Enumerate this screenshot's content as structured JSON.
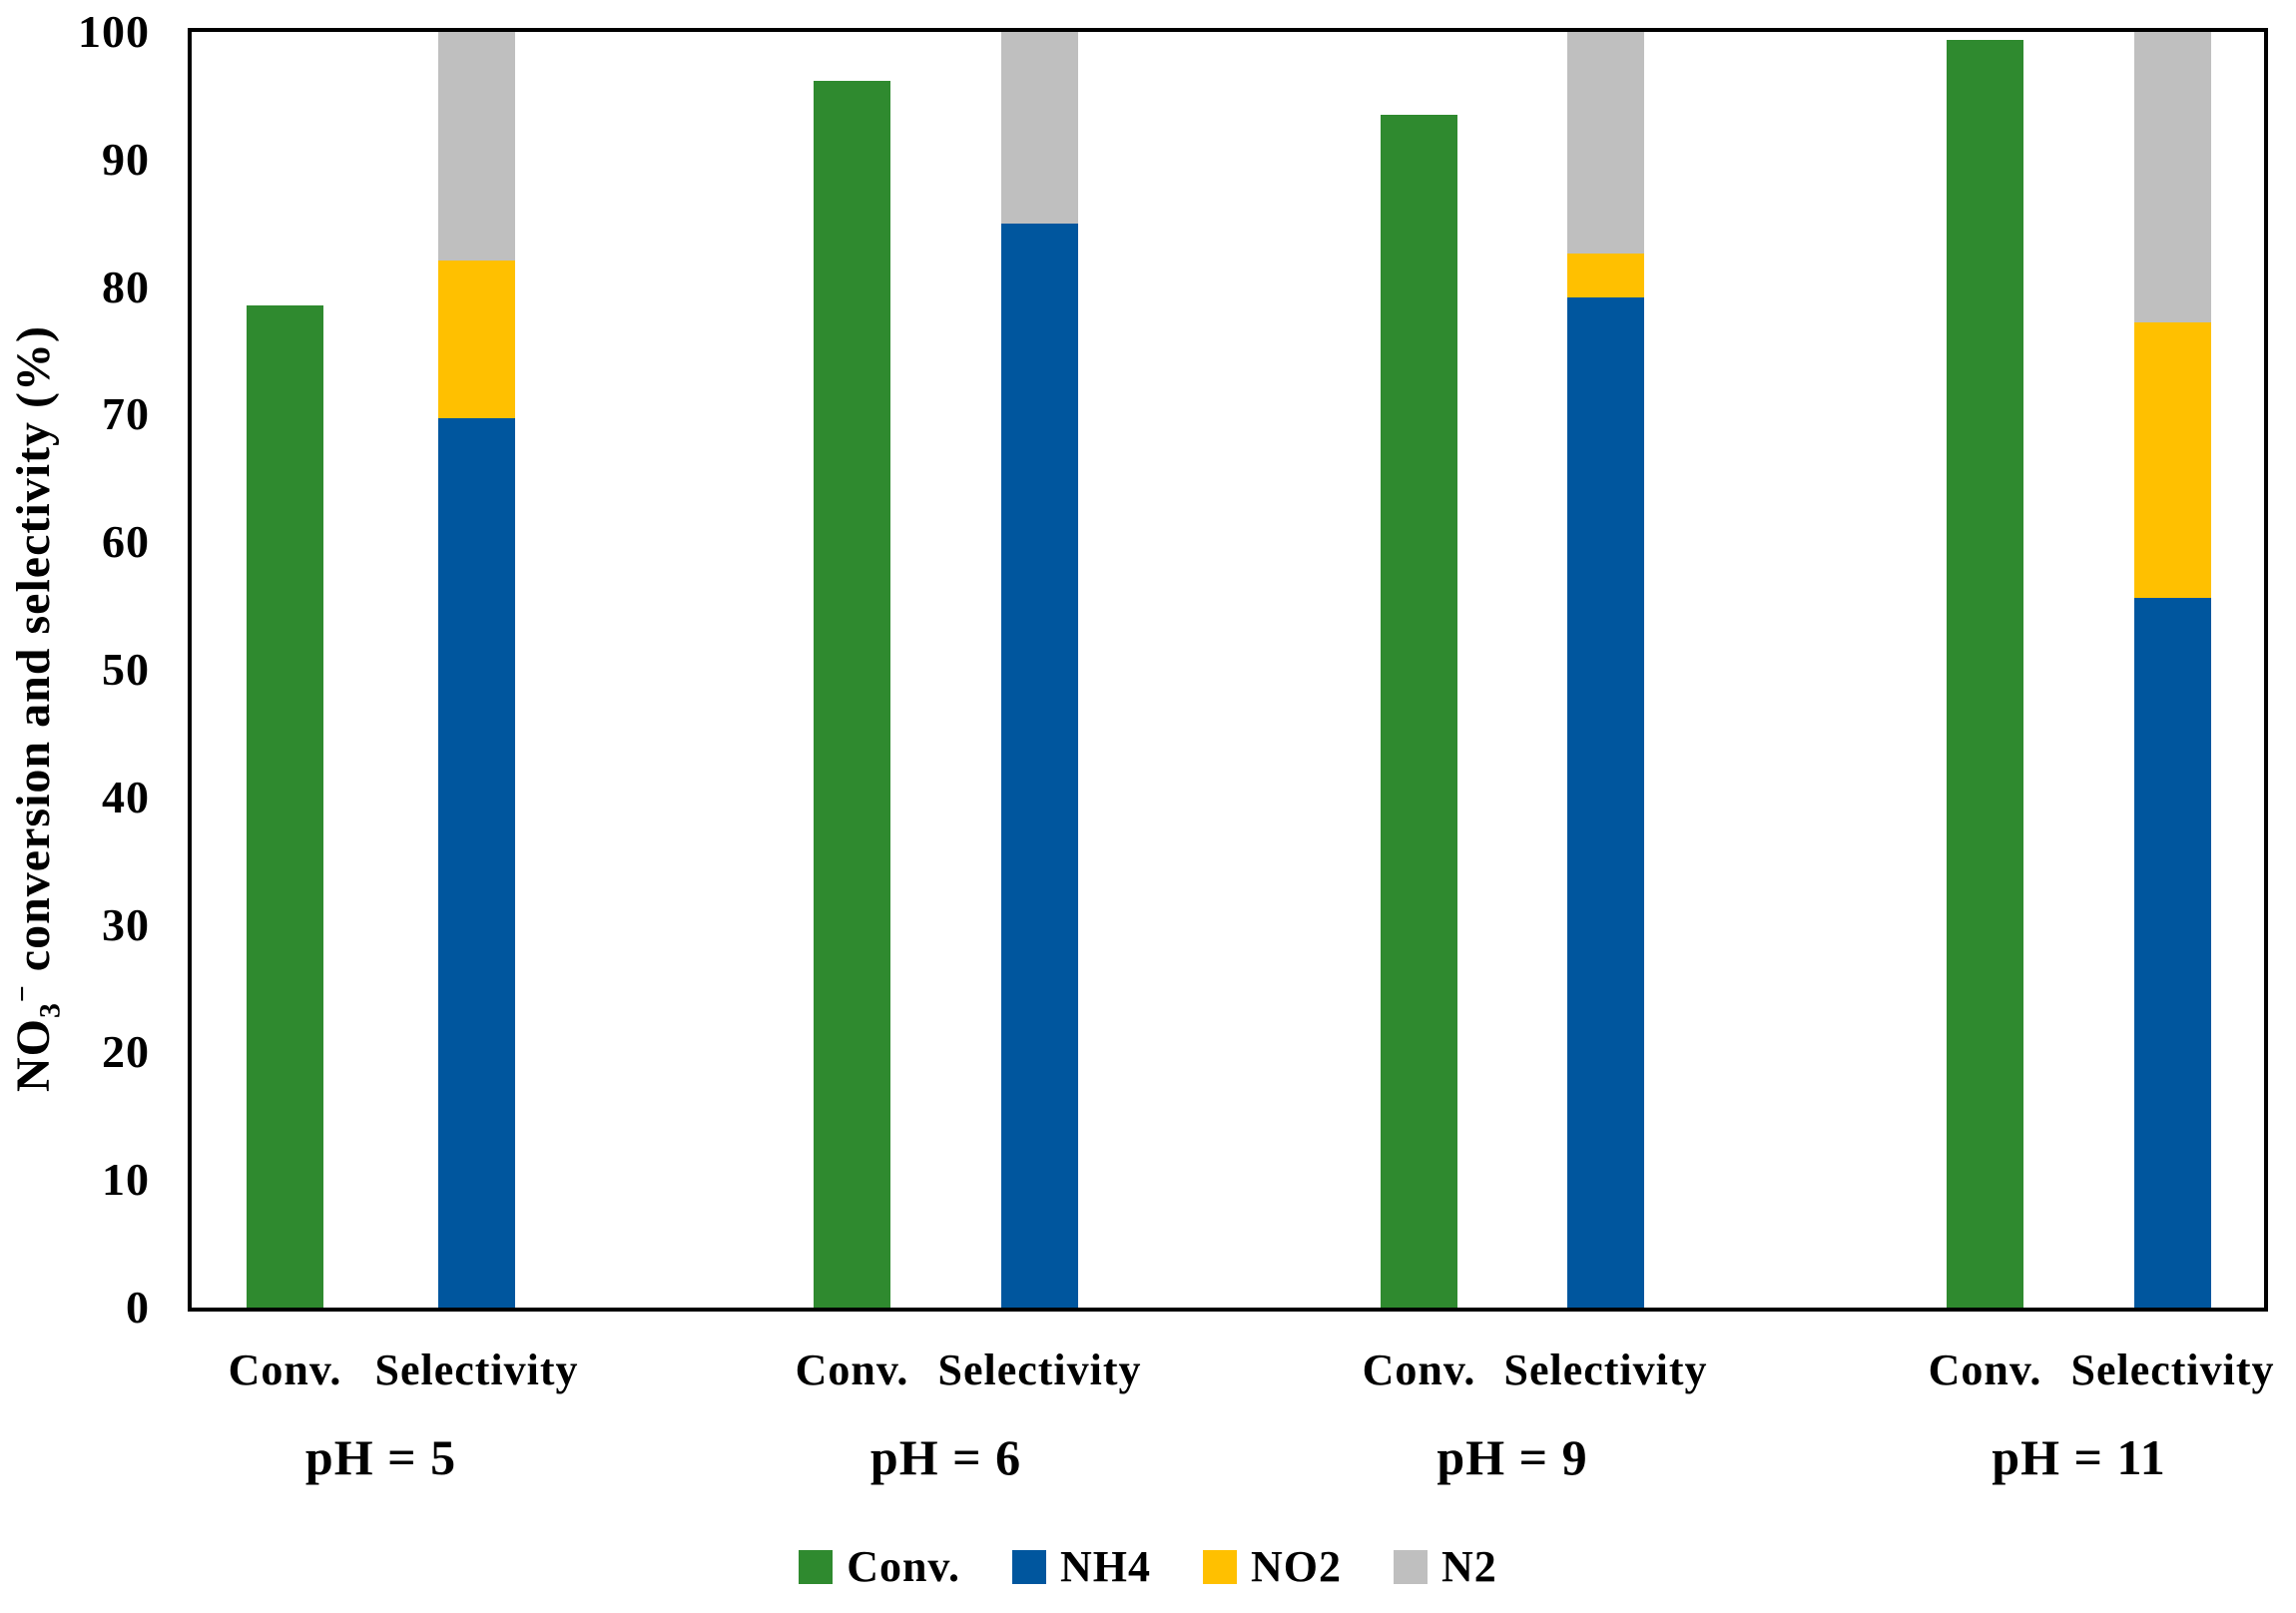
{
  "chart_data": {
    "type": "bar",
    "subtype": "grouped-and-stacked-columns",
    "title": "",
    "y_axis": {
      "label": "NO3− conversion and selectivity (%)",
      "title_parts": {
        "base": "NO",
        "sub": "3",
        "sup": "−",
        "rest": " conversion and selectivity (%)"
      },
      "min": 0,
      "max": 100,
      "tick_step": 10,
      "ticks": [
        0,
        10,
        20,
        30,
        40,
        50,
        60,
        70,
        80,
        90,
        100
      ]
    },
    "x_axis": {
      "sub_labels": [
        "Conv.",
        "Selectivity"
      ],
      "group_labels": [
        "pH = 5",
        "pH = 6",
        "pH = 9",
        "pH = 11"
      ]
    },
    "series": [
      {
        "name": "Conv.",
        "role": "single-column",
        "color": "#2F8A2F",
        "values": [
          78.6,
          96.2,
          93.5,
          99.4
        ]
      },
      {
        "name": "NH4",
        "role": "stacked",
        "color": "#00569E",
        "values": [
          69.7,
          85.0,
          79.2,
          55.6
        ]
      },
      {
        "name": "NO2",
        "role": "stacked",
        "color": "#FFC000",
        "values": [
          12.4,
          0.0,
          3.4,
          21.6
        ]
      },
      {
        "name": "N2",
        "role": "stacked",
        "color": "#BFBFBF",
        "values": [
          17.9,
          15.0,
          17.4,
          22.8
        ]
      }
    ],
    "legend": {
      "position": "bottom",
      "items": [
        "Conv.",
        "NH4",
        "NO2",
        "N2"
      ]
    },
    "grid": false,
    "plot_border_color": "#000000"
  }
}
